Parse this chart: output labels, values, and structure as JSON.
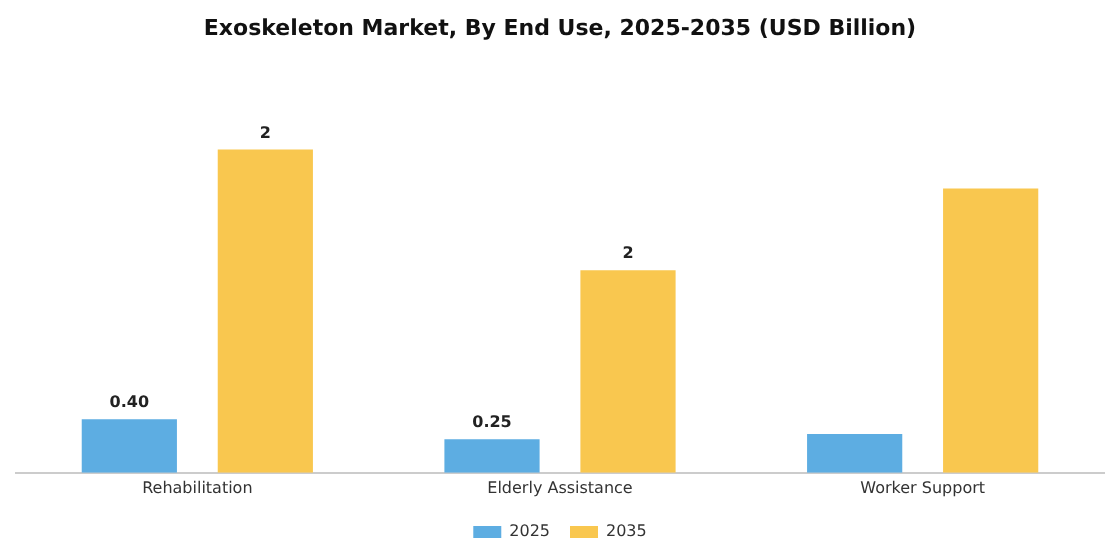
{
  "chart_data": {
    "type": "bar",
    "title": "Exoskeleton Market, By End Use, 2025-2035 (USD Billion)",
    "categories": [
      "Rehabilitation",
      "Elderly Assistance",
      "Worker Support"
    ],
    "series": [
      {
        "name": "2025",
        "color": "#5dade2",
        "values": [
          0.4,
          0.25,
          0.29
        ],
        "value_labels": [
          "0.40",
          "0.25",
          null
        ]
      },
      {
        "name": "2035",
        "color": "#f9c74f",
        "values": [
          2.41,
          1.51,
          2.12
        ],
        "value_labels": [
          "2",
          "2",
          null
        ]
      }
    ],
    "legend": "bottom",
    "grid": false
  }
}
